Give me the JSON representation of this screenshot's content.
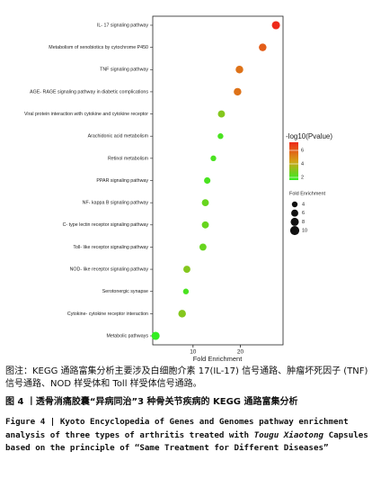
{
  "chart_data": {
    "type": "bubble",
    "xlabel": "Fold Enrichment",
    "xlim": [
      1.5,
      29
    ],
    "xticks": [
      10,
      20
    ],
    "categories": [
      "IL- 17 signaling pathway",
      "Metabolism of xenobiotics by cytochrome P450",
      "TNF signaling pathway",
      "AGE- RAGE signaling pathway in diabetic complications",
      "Viral protein interaction with cytokine and cytokine receptor",
      "Arachidonic acid metabolism",
      "Retinol metabolism",
      "PPAR signaling pathway",
      "NF- kappa B signaling pathway",
      "C- type lectin receptor signaling pathway",
      "Toll- like receptor signaling pathway",
      "NOD- like receptor signaling pathway",
      "Serotonergic synapse",
      "Cytokine- cytokine receptor interaction",
      "Metabolic pathways"
    ],
    "values": [
      27.5,
      24.7,
      19.8,
      19.4,
      16.0,
      15.8,
      14.3,
      13.0,
      12.6,
      12.6,
      12.1,
      8.7,
      8.5,
      7.7,
      2.1
    ],
    "sizes": [
      8,
      7,
      7,
      7,
      6,
      4,
      4,
      5,
      6,
      6,
      6,
      6,
      4,
      7,
      8
    ],
    "colors_value": [
      7.5,
      6,
      5.5,
      5.5,
      3,
      2,
      2,
      2,
      2.5,
      2.5,
      2.5,
      3,
      2,
      3,
      1.5
    ],
    "color_title": "-log10(Pvalue)",
    "clim": [
      1.6,
      7.2
    ],
    "cticks": [
      2,
      4,
      6
    ],
    "colormap": [
      "#33ee22",
      "#d4a017",
      "#ee2a1a"
    ],
    "size_title": "Fold Enrichment",
    "size_legend": [
      4,
      6,
      8,
      10
    ]
  },
  "caption": {
    "note": "图注：KEGG 通路富集分析主要涉及白细胞介素 17(IL-17) 信号通路、肿瘤坏死因子 (TNF) 信号通路、NOD 样受体和 Toll 样受体信号通路。",
    "title_cn": "图 4 丨透骨消痛胶囊“异病同治”3 种骨关节疾病的 KEGG 通路富集分析",
    "title_en_1": "Figure 4 | Kyoto Encyclopedia of Genes and Genomes pathway enrichment analysis of three types of arthritis treated with ",
    "title_en_2": "Tougu Xiaotong",
    "title_en_3": " Capsules based on the principle of “Same Treatment for Different Diseases”"
  }
}
